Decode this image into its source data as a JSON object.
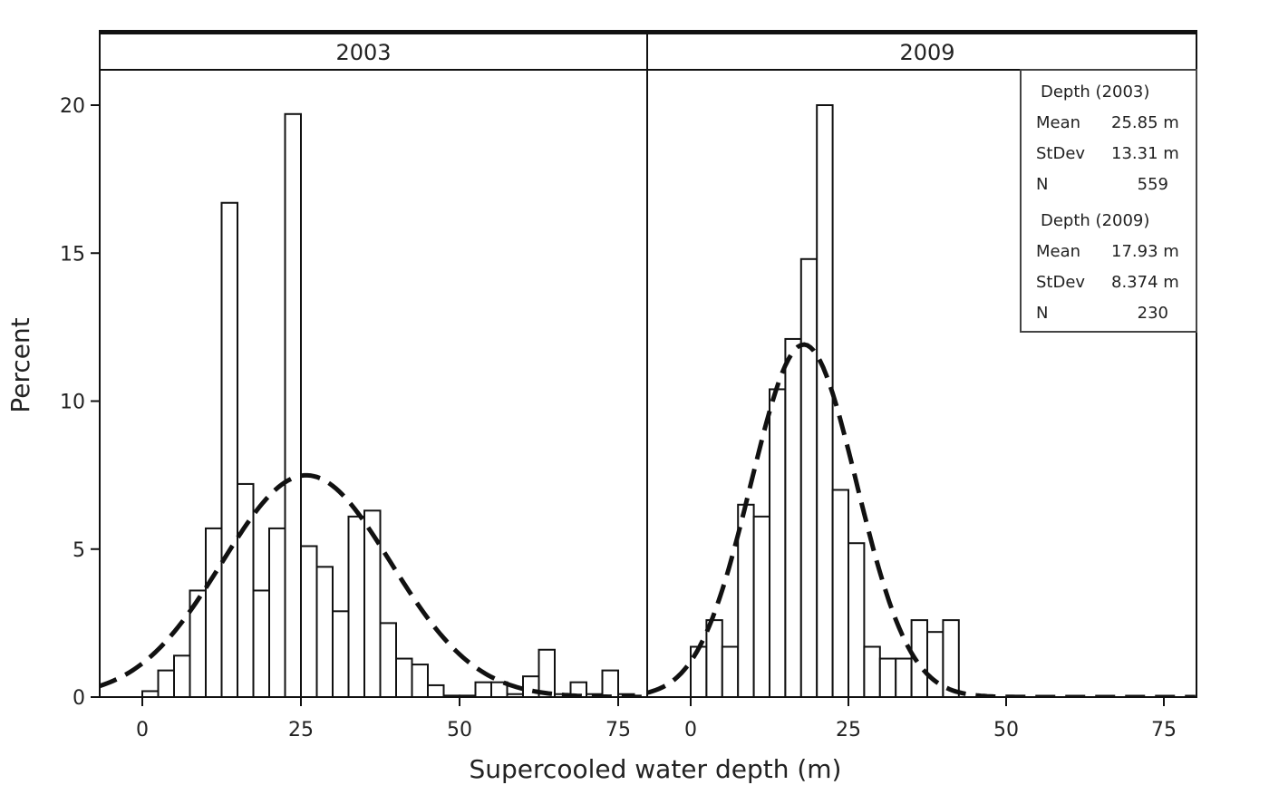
{
  "chart_data": {
    "type": "bar",
    "ylabel": "Percent",
    "xlabel": "Supercooled water depth (m)",
    "ylim": [
      0,
      22.5
    ],
    "xlim": [
      -7,
      80
    ],
    "x_ticks": [
      "0",
      "25",
      "50",
      "75"
    ],
    "y_ticks": [
      "0",
      "5",
      "10",
      "15",
      "20"
    ],
    "bin_width": 2.5,
    "fit": "normal",
    "panels": [
      {
        "title": "2003",
        "bins": [
          [
            1.25,
            0.2
          ],
          [
            3.75,
            0.9
          ],
          [
            6.25,
            1.4
          ],
          [
            8.75,
            3.6
          ],
          [
            11.25,
            5.7
          ],
          [
            13.75,
            16.7
          ],
          [
            16.25,
            7.2
          ],
          [
            18.75,
            3.6
          ],
          [
            21.25,
            5.7
          ],
          [
            23.75,
            19.7
          ],
          [
            26.25,
            5.1
          ],
          [
            28.75,
            4.4
          ],
          [
            31.25,
            2.9
          ],
          [
            33.75,
            6.1
          ],
          [
            36.25,
            6.3
          ],
          [
            38.75,
            2.5
          ],
          [
            41.25,
            1.3
          ],
          [
            43.75,
            1.1
          ],
          [
            46.25,
            0.4
          ],
          [
            48.75,
            0.05
          ],
          [
            51.25,
            0.05
          ],
          [
            53.75,
            0.5
          ],
          [
            56.25,
            0.5
          ],
          [
            58.75,
            0.1
          ],
          [
            61.25,
            0.7
          ],
          [
            63.75,
            1.6
          ],
          [
            66.25,
            0.1
          ],
          [
            68.75,
            0.5
          ],
          [
            71.25,
            0.1
          ],
          [
            73.75,
            0.9
          ],
          [
            76.25,
            0.1
          ]
        ],
        "mean": 25.85,
        "stdev": 13.31
      },
      {
        "title": "2009",
        "bins": [
          [
            1.25,
            1.7
          ],
          [
            3.75,
            2.6
          ],
          [
            6.25,
            1.7
          ],
          [
            8.75,
            6.5
          ],
          [
            11.25,
            6.1
          ],
          [
            13.75,
            10.4
          ],
          [
            16.25,
            12.1
          ],
          [
            18.75,
            14.8
          ],
          [
            21.25,
            20.0
          ],
          [
            23.75,
            7.0
          ],
          [
            26.25,
            5.2
          ],
          [
            28.75,
            1.7
          ],
          [
            31.25,
            1.3
          ],
          [
            33.75,
            1.3
          ],
          [
            36.25,
            2.6
          ],
          [
            38.75,
            2.2
          ],
          [
            41.25,
            2.6
          ]
        ],
        "mean": 17.93,
        "stdev": 8.374
      }
    ],
    "legend": {
      "position": "top-right",
      "groups": [
        {
          "header": "Depth (2003)",
          "rows": [
            {
              "label": "Mean",
              "value": "25.85 m"
            },
            {
              "label": "StDev",
              "value": "13.31 m"
            },
            {
              "label": "N",
              "value": "559"
            }
          ]
        },
        {
          "header": "Depth (2009)",
          "rows": [
            {
              "label": "Mean",
              "value": "17.93 m"
            },
            {
              "label": "StDev",
              "value": "8.374 m"
            },
            {
              "label": "N",
              "value": "230"
            }
          ]
        }
      ]
    }
  }
}
